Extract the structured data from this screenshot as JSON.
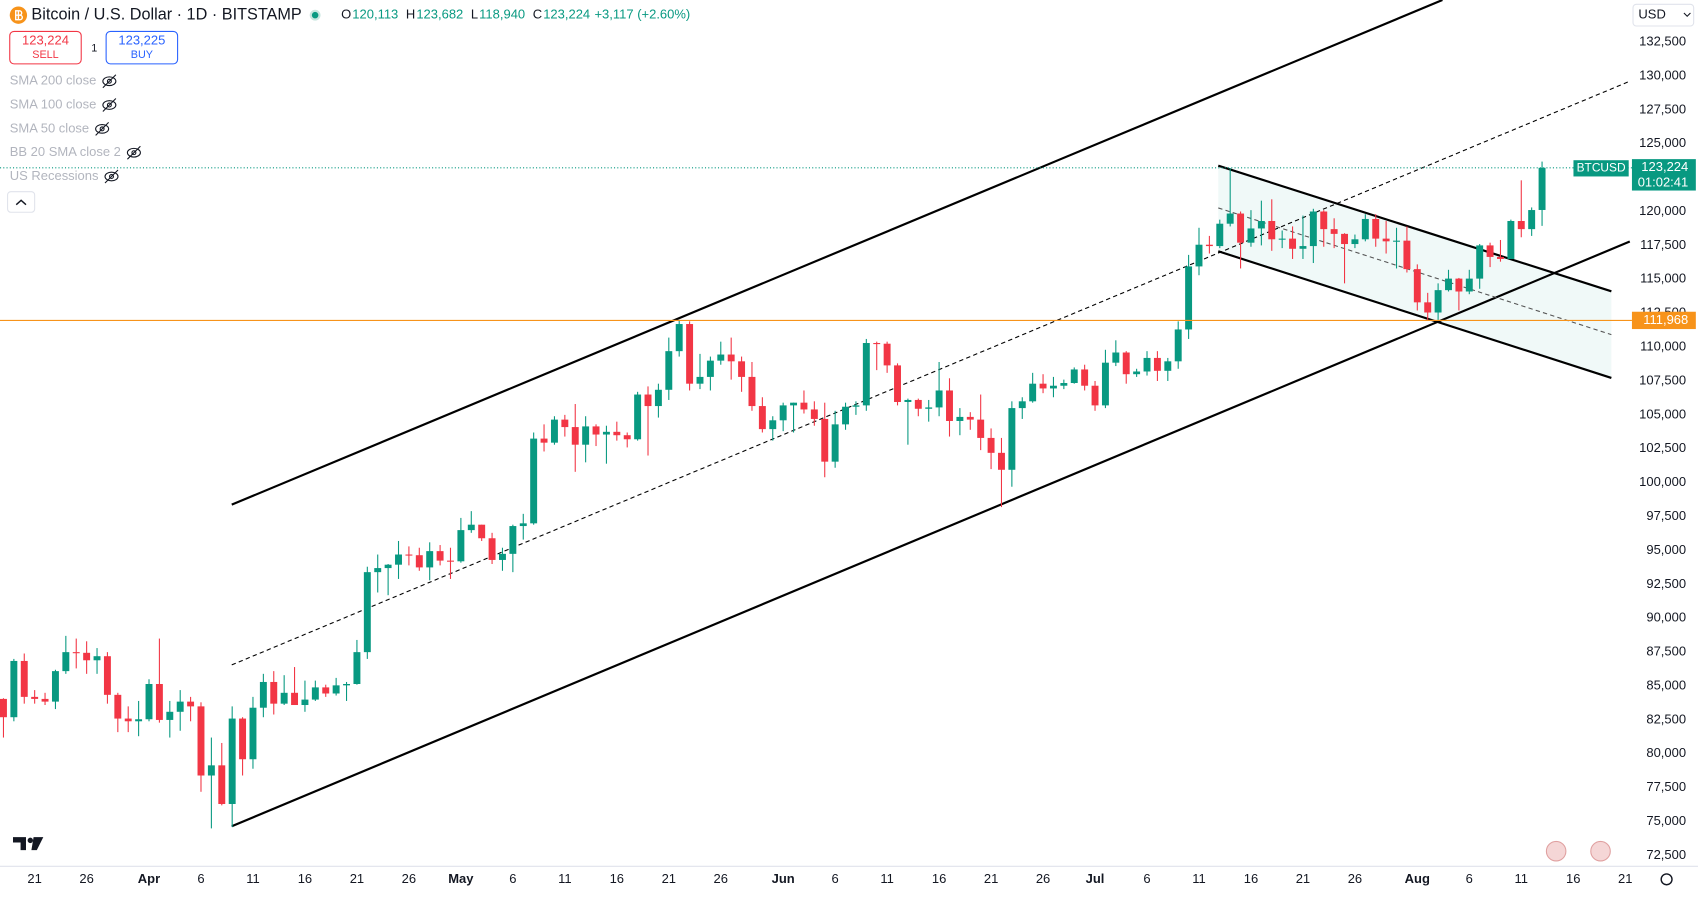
{
  "header": {
    "title": "Bitcoin / U.S. Dollar · 1D · BITSTAMP",
    "ohlc": [
      {
        "key": "O",
        "value": "120,113"
      },
      {
        "key": "H",
        "value": "123,682"
      },
      {
        "key": "L",
        "value": "118,940"
      },
      {
        "key": "C",
        "value": "123,224"
      }
    ],
    "change": "+3,117 (+2.60%)",
    "sell": {
      "price": "123,224",
      "label": "SELL"
    },
    "quantity": "1",
    "buy": {
      "price": "123,225",
      "label": "BUY"
    },
    "currency": "USD"
  },
  "indicators": [
    "SMA 200 close",
    "SMA 100 close",
    "SMA 50 close",
    "BB 20 SMA close 2",
    "US Recessions"
  ],
  "chart_data": {
    "type": "candlestick",
    "up_color": "#089981",
    "down_color": "#f23645",
    "categories": [
      null,
      null,
      null,
      "21",
      null,
      null,
      null,
      null,
      "26",
      null,
      null,
      null,
      null,
      null,
      "Apr",
      null,
      null,
      null,
      null,
      "6",
      null,
      null,
      null,
      null,
      "11",
      null,
      null,
      null,
      null,
      "16",
      null,
      null,
      null,
      null,
      "21",
      null,
      null,
      null,
      null,
      "26",
      null,
      null,
      null,
      null,
      "May",
      null,
      null,
      null,
      null,
      "6",
      null,
      null,
      null,
      null,
      "11",
      null,
      null,
      null,
      null,
      "16",
      null,
      null,
      null,
      null,
      "21",
      null,
      null,
      null,
      null,
      "26",
      null,
      null,
      null,
      null,
      null,
      "Jun",
      null,
      null,
      null,
      null,
      "6",
      null,
      null,
      null,
      null,
      "11",
      null,
      null,
      null,
      null,
      "16",
      null,
      null,
      null,
      null,
      "21",
      null,
      null,
      null,
      null,
      "26",
      null,
      null,
      null,
      null,
      "Jul",
      null,
      null,
      null,
      null,
      "6",
      null,
      null,
      null,
      null,
      "11",
      null,
      null,
      null,
      null,
      "16",
      null,
      null,
      null,
      null,
      "21",
      null,
      null,
      null,
      null,
      "26",
      null,
      null,
      null,
      null,
      null,
      "Aug",
      null,
      null,
      null,
      null,
      "6",
      null,
      null,
      null,
      null,
      "11",
      null,
      null,
      null,
      null,
      "16",
      null,
      null,
      null,
      null,
      "21"
    ],
    "open": [
      84050,
      82700,
      86850,
      84200,
      84050,
      83850,
      86100,
      87500,
      87450,
      86900,
      87200,
      84350,
      82600,
      82400,
      82550,
      85150,
      82500,
      83100,
      83850,
      83500,
      78400,
      79150,
      76300,
      82600,
      79600,
      83400,
      85300,
      83700,
      84500,
      83600,
      84000,
      84900,
      84450,
      85050,
      85150,
      87500,
      93400,
      93700,
      93950,
      94700,
      94650,
      93750,
      94950,
      94250,
      94200,
      96500,
      96900,
      95900,
      94300,
      94750,
      96800,
      97000,
      103250,
      102950,
      104650,
      104100,
      102800,
      104150,
      103550,
      103750,
      103500,
      103200,
      106500,
      105650,
      106850,
      109700,
      111700,
      107300,
      107800,
      109000,
      109450,
      108950,
      107800,
      105650,
      103950,
      104600,
      105700,
      105900,
      105400,
      104700,
      101550,
      104300,
      105600,
      105700,
      110300,
      110250,
      108650,
      105950,
      106100,
      105450,
      105550,
      106800,
      104550,
      104850,
      104650,
      103300,
      102200,
      100950,
      105500,
      106000,
      107300,
      106950,
      107150,
      107350,
      108350,
      107150,
      105700,
      108850,
      109600,
      108000,
      108200,
      109200,
      108250,
      108950,
      111300,
      115950,
      117550,
      117450,
      119100,
      119850,
      117700,
      118750,
      119300,
      117950,
      118000,
      117250,
      117450,
      120000,
      118700,
      118350,
      117600,
      117950,
      119450,
      118000,
      117800,
      117850,
      115750,
      113300,
      112550,
      114200,
      115050,
      114100,
      115050,
      117500,
      116650,
      116500,
      119300,
      118700,
      120113,
      null,
      null,
      null,
      null,
      null,
      null,
      null,
      null
    ],
    "high": [
      84100,
      87000,
      87400,
      84700,
      84500,
      86200,
      88700,
      88500,
      88300,
      87800,
      87500,
      84500,
      83500,
      83900,
      85500,
      88500,
      83900,
      84700,
      84200,
      83800,
      81200,
      80800,
      83500,
      82700,
      84200,
      85900,
      86100,
      85800,
      86400,
      85400,
      85400,
      85100,
      85600,
      85300,
      88400,
      93800,
      94700,
      94000,
      95700,
      95300,
      95200,
      95600,
      95400,
      95200,
      97400,
      97900,
      96900,
      96300,
      95200,
      96900,
      97700,
      103700,
      104300,
      104900,
      105000,
      105800,
      104900,
      104300,
      104200,
      104500,
      103700,
      106700,
      107100,
      107300,
      110700,
      112000,
      111900,
      109500,
      109300,
      110400,
      110700,
      109300,
      108900,
      106300,
      104900,
      105900,
      105900,
      106800,
      106000,
      105900,
      105300,
      105900,
      106000,
      110600,
      110400,
      110400,
      108800,
      106200,
      106200,
      106100,
      108900,
      107700,
      105500,
      105200,
      106500,
      104000,
      103300,
      106000,
      106300,
      108100,
      108000,
      107800,
      107600,
      108500,
      108700,
      107500,
      109800,
      110500,
      109700,
      108400,
      109700,
      109700,
      109200,
      111900,
      116800,
      118800,
      118200,
      119400,
      123200,
      120000,
      120100,
      120800,
      120900,
      118600,
      118900,
      119700,
      120200,
      120100,
      119500,
      118400,
      118300,
      119800,
      119800,
      119300,
      118800,
      118900,
      116100,
      114000,
      114700,
      115700,
      115100,
      115700,
      117600,
      117700,
      117900,
      119400,
      122300,
      120300,
      123682,
      null,
      null,
      null,
      null,
      null,
      null,
      null,
      null
    ],
    "low": [
      81200,
      82400,
      83700,
      83700,
      83600,
      83300,
      85900,
      86300,
      85900,
      85900,
      83700,
      81600,
      81600,
      81300,
      82400,
      82300,
      81200,
      81700,
      82400,
      77200,
      74500,
      76200,
      74600,
      78400,
      78900,
      82700,
      82900,
      83600,
      83600,
      83100,
      83900,
      84200,
      84300,
      83900,
      85100,
      87000,
      91900,
      91700,
      92900,
      93900,
      93500,
      92800,
      93900,
      92900,
      94100,
      96300,
      95700,
      94000,
      93500,
      93400,
      95800,
      96900,
      102300,
      102800,
      103400,
      100800,
      101500,
      102700,
      101400,
      103100,
      102600,
      103100,
      102000,
      104800,
      106100,
      109300,
      106800,
      106900,
      106800,
      108700,
      107600,
      106700,
      105300,
      103700,
      103100,
      103800,
      103700,
      105100,
      104200,
      100400,
      101100,
      103900,
      105000,
      105300,
      108300,
      108100,
      105700,
      102800,
      104900,
      104500,
      104900,
      103400,
      103500,
      103900,
      102400,
      101000,
      98200,
      99700,
      104700,
      105900,
      106600,
      106300,
      106900,
      107300,
      106800,
      105300,
      105500,
      108600,
      107300,
      107800,
      107900,
      107500,
      107500,
      108400,
      110600,
      115300,
      116900,
      117300,
      118900,
      115800,
      117400,
      117500,
      117100,
      117300,
      116500,
      116500,
      116200,
      117400,
      117300,
      114700,
      117300,
      117800,
      117400,
      116900,
      115800,
      115500,
      112700,
      112000,
      112000,
      114100,
      112700,
      113900,
      114300,
      115900,
      116300,
      116500,
      118100,
      118200,
      118940,
      null,
      null,
      null,
      null,
      null,
      null,
      null,
      null
    ],
    "close": [
      82700,
      86850,
      84200,
      84050,
      83850,
      86100,
      87500,
      87450,
      86900,
      87200,
      84350,
      82600,
      82400,
      82550,
      85150,
      82500,
      83100,
      83850,
      83500,
      78400,
      79150,
      76300,
      82600,
      79600,
      83400,
      85300,
      83700,
      84500,
      83600,
      84000,
      84900,
      84450,
      85050,
      85150,
      87500,
      93400,
      93700,
      93950,
      94700,
      94650,
      93750,
      94950,
      94250,
      94200,
      96500,
      96900,
      95900,
      94300,
      94750,
      96800,
      97000,
      103250,
      102950,
      104650,
      104100,
      102800,
      104150,
      103550,
      103750,
      103500,
      103200,
      106500,
      105650,
      106850,
      109700,
      111700,
      107300,
      107800,
      109000,
      109450,
      108950,
      107800,
      105650,
      103950,
      104600,
      105700,
      105900,
      105400,
      104700,
      101550,
      104300,
      105600,
      105700,
      110300,
      110250,
      108650,
      105950,
      106100,
      105450,
      105550,
      106800,
      104550,
      104850,
      104650,
      103300,
      102200,
      100950,
      105500,
      106000,
      107300,
      106950,
      107150,
      107350,
      108350,
      107150,
      105700,
      108850,
      109600,
      108000,
      108200,
      109200,
      108250,
      108950,
      111300,
      115950,
      117550,
      117450,
      119100,
      119850,
      117700,
      118750,
      119300,
      117950,
      118000,
      117250,
      117450,
      120000,
      118700,
      118350,
      117600,
      117950,
      119450,
      118000,
      117800,
      117850,
      115750,
      113300,
      112550,
      114200,
      115050,
      114100,
      115050,
      117500,
      116650,
      116500,
      119300,
      118700,
      120107,
      123224,
      null,
      null,
      null,
      null,
      null,
      null,
      null,
      null
    ],
    "ylim": [
      71700,
      135600
    ],
    "yticks": [
      {
        "value": 72500,
        "label": "72,500"
      },
      {
        "value": 75000,
        "label": "75,000"
      },
      {
        "value": 77500,
        "label": "77,500"
      },
      {
        "value": 80000,
        "label": "80,000"
      },
      {
        "value": 82500,
        "label": "82,500"
      },
      {
        "value": 85000,
        "label": "85,000"
      },
      {
        "value": 87500,
        "label": "87,500"
      },
      {
        "value": 90000,
        "label": "90,000"
      },
      {
        "value": 92500,
        "label": "92,500"
      },
      {
        "value": 95000,
        "label": "95,000"
      },
      {
        "value": 97500,
        "label": "97,500"
      },
      {
        "value": 100000,
        "label": "100,000"
      },
      {
        "value": 102500,
        "label": "102,500"
      },
      {
        "value": 105000,
        "label": "105,000"
      },
      {
        "value": 107500,
        "label": "107,500"
      },
      {
        "value": 110000,
        "label": "110,000"
      },
      {
        "value": 112500,
        "label": "112,500"
      },
      {
        "value": 115000,
        "label": "115,000"
      },
      {
        "value": 117500,
        "label": "117,500"
      },
      {
        "value": 120000,
        "label": "120,000"
      },
      {
        "value": 122500,
        "label": "122,500"
      },
      {
        "value": 125000,
        "label": "125,000"
      },
      {
        "value": 127500,
        "label": "127,500"
      },
      {
        "value": 130000,
        "label": "130,000"
      },
      {
        "value": 132500,
        "label": "132,500"
      }
    ],
    "grid": false,
    "last_price": {
      "symbol": "BTCUSD",
      "value": 123224,
      "label": "123,224",
      "countdown": "01:02:41"
    },
    "price_line": {
      "value": 111968,
      "label": "111,968",
      "color": "#f7931a"
    }
  }
}
